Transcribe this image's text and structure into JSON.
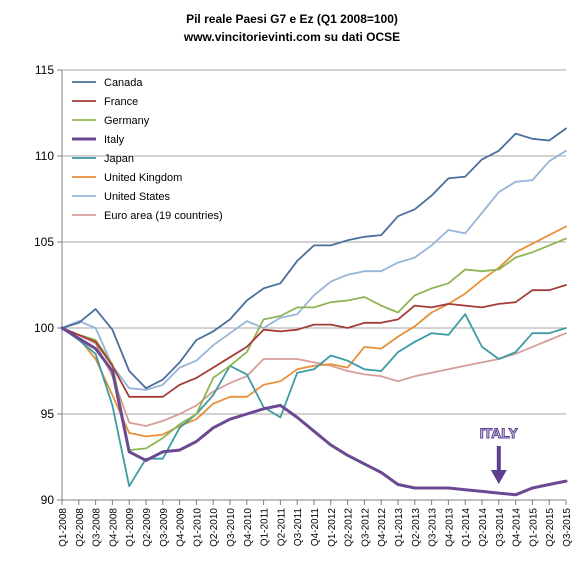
{
  "chart_data": {
    "type": "line",
    "title": "Pil reale Paesi G7 e Ez (Q1 2008=100)",
    "subtitle": "www.vincitorievinti.com su dati OCSE",
    "xlabel": "",
    "ylabel": "",
    "ylim": [
      90,
      115
    ],
    "yticks": [
      90,
      95,
      100,
      105,
      110,
      115
    ],
    "grid": true,
    "legend_position": "top-left",
    "categories": [
      "Q1-2008",
      "Q2-2008",
      "Q3-2008",
      "Q4-2008",
      "Q1-2009",
      "Q2-2009",
      "Q3-2009",
      "Q4-2009",
      "Q1-2010",
      "Q2-2010",
      "Q3-2010",
      "Q4-2010",
      "Q1-2011",
      "Q2-2011",
      "Q3-2011",
      "Q4-2011",
      "Q1-2012",
      "Q2-2012",
      "Q3-2012",
      "Q4-2012",
      "Q1-2013",
      "Q2-2013",
      "Q3-2013",
      "Q4-2013",
      "Q1-2014",
      "Q2-2014",
      "Q3-2014",
      "Q4-2014",
      "Q1-2015",
      "Q2-2015",
      "Q3-2015"
    ],
    "series": [
      {
        "name": "Canada",
        "color": "#4a6f9a",
        "width": 1.8,
        "values": [
          100,
          100.3,
          101.1,
          99.9,
          97.5,
          96.5,
          97.0,
          98.0,
          99.3,
          99.8,
          100.5,
          101.6,
          102.3,
          102.6,
          103.9,
          104.8,
          104.8,
          105.1,
          105.3,
          105.4,
          106.5,
          106.9,
          107.7,
          108.7,
          108.8,
          109.8,
          110.3,
          111.3,
          111.0,
          110.9,
          111.6
        ]
      },
      {
        "name": "France",
        "color": "#a33c38",
        "width": 1.8,
        "values": [
          100,
          99.6,
          99.2,
          97.8,
          96.0,
          96.0,
          96.0,
          96.7,
          97.1,
          97.7,
          98.3,
          98.9,
          99.9,
          99.8,
          99.9,
          100.2,
          100.2,
          100.0,
          100.3,
          100.3,
          100.5,
          101.3,
          101.2,
          101.4,
          101.3,
          101.2,
          101.4,
          101.5,
          102.2,
          102.2,
          102.5
        ]
      },
      {
        "name": "Germany",
        "color": "#8eb553",
        "width": 1.8,
        "values": [
          100,
          99.6,
          99.3,
          97.9,
          92.9,
          93.0,
          93.6,
          94.4,
          95.0,
          97.1,
          97.8,
          98.6,
          100.5,
          100.7,
          101.2,
          101.2,
          101.5,
          101.6,
          101.8,
          101.3,
          100.9,
          101.9,
          102.3,
          102.6,
          103.4,
          103.3,
          103.4,
          104.1,
          104.4,
          104.8,
          105.2
        ]
      },
      {
        "name": "Italy",
        "color": "#6b4a93",
        "width": 3,
        "values": [
          100,
          99.4,
          98.8,
          97.5,
          92.8,
          92.3,
          92.8,
          92.9,
          93.4,
          94.2,
          94.7,
          95.0,
          95.3,
          95.5,
          94.8,
          94.0,
          93.2,
          92.6,
          92.1,
          91.6,
          90.9,
          90.7,
          90.7,
          90.7,
          90.6,
          90.5,
          90.4,
          90.3,
          90.7,
          90.9,
          91.1
        ]
      },
      {
        "name": "Japan",
        "color": "#3e9ba4",
        "width": 1.8,
        "values": [
          100,
          99.3,
          98.5,
          95.5,
          90.8,
          92.4,
          92.4,
          94.2,
          95.0,
          96.1,
          97.8,
          97.3,
          95.4,
          94.8,
          97.4,
          97.6,
          98.4,
          98.1,
          97.6,
          97.5,
          98.6,
          99.2,
          99.7,
          99.6,
          100.8,
          98.9,
          98.2,
          98.6,
          99.7,
          99.7,
          100.0
        ]
      },
      {
        "name": "United Kingdom",
        "color": "#e6913a",
        "width": 1.8,
        "values": [
          100,
          99.4,
          98.2,
          96.1,
          93.9,
          93.7,
          93.8,
          94.3,
          94.7,
          95.6,
          96.0,
          96.0,
          96.7,
          96.9,
          97.6,
          97.8,
          97.9,
          97.7,
          98.9,
          98.8,
          99.5,
          100.1,
          100.9,
          101.4,
          102.0,
          102.8,
          103.5,
          104.4,
          104.9,
          105.4,
          105.9
        ]
      },
      {
        "name": "United States",
        "color": "#98b5d8",
        "width": 1.8,
        "values": [
          100,
          100.4,
          100.0,
          97.8,
          96.5,
          96.4,
          96.7,
          97.7,
          98.1,
          99.0,
          99.7,
          100.4,
          100.0,
          100.6,
          100.8,
          101.9,
          102.7,
          103.1,
          103.3,
          103.3,
          103.8,
          104.1,
          104.8,
          105.7,
          105.5,
          106.7,
          107.9,
          108.5,
          108.6,
          109.7,
          110.3
        ]
      },
      {
        "name": "Euro area (19 countries)",
        "color": "#d59e9a",
        "width": 1.8,
        "values": [
          100,
          99.6,
          99.1,
          97.2,
          94.5,
          94.3,
          94.6,
          95.0,
          95.5,
          96.3,
          96.8,
          97.2,
          98.2,
          98.2,
          98.2,
          98.0,
          97.8,
          97.5,
          97.3,
          97.2,
          96.9,
          97.2,
          97.4,
          97.6,
          97.8,
          98.0,
          98.2,
          98.5,
          98.9,
          99.3,
          99.7
        ]
      }
    ],
    "annotation": {
      "text": "ITALY",
      "category": "Q3-2014",
      "arrow": "down"
    }
  }
}
